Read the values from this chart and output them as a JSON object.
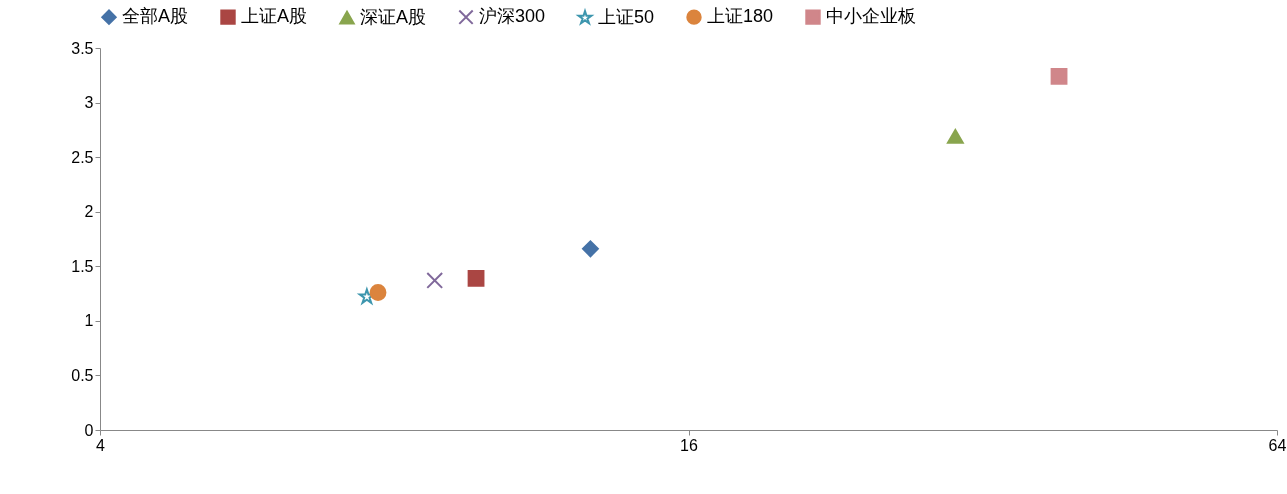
{
  "chart_data": {
    "type": "scatter",
    "log": "x",
    "xlim": [
      4,
      64
    ],
    "xticks": [
      4,
      16,
      64
    ],
    "ylim": [
      0,
      3.5
    ],
    "yticks": [
      {
        "value": 0,
        "label": "0"
      },
      0.5,
      {
        "value": 1,
        "label": "1"
      },
      1.5,
      {
        "value": 2,
        "label": "2"
      },
      2.5,
      {
        "value": 3,
        "label": "3"
      },
      3.5
    ],
    "grid": false,
    "legend": "top",
    "series": [
      {
        "name": "全部A股",
        "color": "#4572a7",
        "marker": "diamond",
        "x": [
          12.7
        ],
        "values": [
          1.66
        ]
      },
      {
        "name": "上证A股",
        "color": "#aa4643",
        "marker": "square",
        "x": [
          9.7
        ],
        "values": [
          1.39
        ]
      },
      {
        "name": "深证A股",
        "color": "#89a54e",
        "marker": "triangle",
        "x": [
          30
        ],
        "values": [
          2.69
        ]
      },
      {
        "name": "沪深300",
        "color": "#80699b",
        "marker": "cross",
        "x": [
          8.8
        ],
        "values": [
          1.37
        ]
      },
      {
        "name": "上证50",
        "color": "#3d96ae",
        "marker": "star",
        "x": [
          7.5
        ],
        "values": [
          1.22
        ]
      },
      {
        "name": "上证180",
        "color": "#db843d",
        "marker": "circle",
        "x": [
          7.7
        ],
        "values": [
          1.26
        ]
      },
      {
        "name": "中小企业板",
        "color": "#d0868a",
        "marker": "square",
        "x": [
          38.3
        ],
        "values": [
          3.24
        ]
      }
    ]
  }
}
